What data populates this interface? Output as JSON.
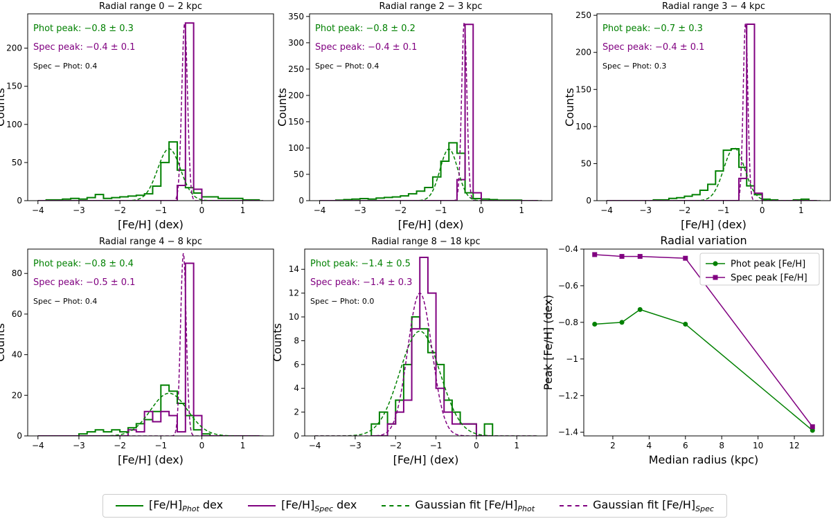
{
  "colors": {
    "phot": "#008000",
    "spec": "#800080",
    "axis": "#000000"
  },
  "legend": {
    "phot_main": "[Fe/H]",
    "phot_sub": "Phot",
    "phot_suffix": " dex",
    "spec_main": "[Fe/H]",
    "spec_sub": "Spec",
    "spec_suffix": " dex",
    "gphot_main": "Gaussian fit [Fe/H]",
    "gphot_sub": "Phot",
    "gspec_main": "Gaussian fit [Fe/H]",
    "gspec_sub": "Spec"
  },
  "chart_data": [
    {
      "type": "histogram",
      "title": "Radial range 0 − 2 kpc",
      "xlabel": "[Fe/H] (dex)",
      "ylabel": "Counts",
      "xlim": [
        -4.25,
        1.75
      ],
      "ylim": [
        0,
        245
      ],
      "xticks": [
        -4,
        -3,
        -2,
        -1,
        0,
        1
      ],
      "yticks": [
        0,
        50,
        100,
        150,
        200
      ],
      "annotations": {
        "phot": "Phot peak: −0.8 ± 0.3",
        "spec": "Spec peak: −0.4 ± 0.1",
        "diff": "Spec −  Phot: 0.4"
      },
      "bin_edges": [
        -4.0,
        -3.8,
        -3.6,
        -3.4,
        -3.2,
        -3.0,
        -2.8,
        -2.6,
        -2.4,
        -2.2,
        -2.0,
        -1.8,
        -1.6,
        -1.4,
        -1.2,
        -1.0,
        -0.8,
        -0.6,
        -0.4,
        -0.2,
        0.0,
        0.2,
        0.4,
        0.6,
        0.8,
        1.0,
        1.2,
        1.4
      ],
      "phot_counts": [
        0,
        1,
        1,
        2,
        3,
        2,
        4,
        8,
        3,
        4,
        5,
        6,
        7,
        9,
        19,
        50,
        77,
        40,
        17,
        10,
        5,
        5,
        3,
        3,
        3,
        1,
        1
      ],
      "spec_counts": [
        0,
        0,
        0,
        0,
        0,
        0,
        0,
        0,
        0,
        0,
        0,
        0,
        0,
        0,
        0,
        0,
        0,
        20,
        233,
        15,
        0,
        0,
        0,
        0,
        0,
        0,
        0
      ],
      "gauss_phot": {
        "amp": 68,
        "mu": -0.8,
        "sigma": 0.28
      },
      "gauss_spec": {
        "amp": 233,
        "mu": -0.42,
        "sigma": 0.07
      }
    },
    {
      "type": "histogram",
      "title": "Radial range 2 − 3 kpc",
      "xlabel": "[Fe/H] (dex)",
      "ylabel": "Counts",
      "xlim": [
        -4.25,
        1.75
      ],
      "ylim": [
        0,
        355
      ],
      "xticks": [
        -4,
        -3,
        -2,
        -1,
        0,
        1
      ],
      "yticks": [
        0,
        50,
        100,
        150,
        200,
        250,
        300,
        350
      ],
      "annotations": {
        "phot": "Phot peak: −0.8 ± 0.2",
        "spec": "Spec peak: −0.4 ± 0.1",
        "diff": "Spec −  Phot: 0.4"
      },
      "bin_edges": [
        -4.0,
        -3.8,
        -3.6,
        -3.4,
        -3.2,
        -3.0,
        -2.8,
        -2.6,
        -2.4,
        -2.2,
        -2.0,
        -1.8,
        -1.6,
        -1.4,
        -1.2,
        -1.0,
        -0.8,
        -0.6,
        -0.4,
        -0.2,
        0.0,
        0.2,
        0.4,
        0.6,
        0.8,
        1.0,
        1.2,
        1.4
      ],
      "phot_counts": [
        0,
        0,
        1,
        2,
        3,
        4,
        3,
        5,
        6,
        7,
        9,
        13,
        18,
        25,
        45,
        75,
        110,
        90,
        15,
        4,
        3,
        2,
        1,
        1,
        1,
        0,
        0
      ],
      "spec_counts": [
        0,
        0,
        0,
        0,
        0,
        0,
        0,
        0,
        0,
        0,
        0,
        0,
        0,
        0,
        0,
        0,
        0,
        40,
        335,
        15,
        0,
        0,
        0,
        0,
        0,
        0,
        0
      ],
      "gauss_phot": {
        "amp": 98,
        "mu": -0.8,
        "sigma": 0.22
      },
      "gauss_spec": {
        "amp": 340,
        "mu": -0.42,
        "sigma": 0.065
      }
    },
    {
      "type": "histogram",
      "title": "Radial range 3 − 4 kpc",
      "xlabel": "[Fe/H] (dex)",
      "ylabel": "Counts",
      "xlim": [
        -4.25,
        1.75
      ],
      "ylim": [
        0,
        252
      ],
      "xticks": [
        -4,
        -3,
        -2,
        -1,
        0,
        1
      ],
      "yticks": [
        0,
        50,
        100,
        150,
        200,
        250
      ],
      "annotations": {
        "phot": "Phot peak: −0.7 ± 0.3",
        "spec": "Spec peak: −0.4 ± 0.1",
        "diff": "Spec −  Phot: 0.3"
      },
      "bin_edges": [
        -4.0,
        -3.8,
        -3.6,
        -3.4,
        -3.2,
        -3.0,
        -2.8,
        -2.6,
        -2.4,
        -2.2,
        -2.0,
        -1.8,
        -1.6,
        -1.4,
        -1.2,
        -1.0,
        -0.8,
        -0.6,
        -0.4,
        -0.2,
        0.0,
        0.2,
        0.4,
        0.6,
        0.8,
        1.0,
        1.2,
        1.4
      ],
      "phot_counts": [
        0,
        0,
        0,
        0,
        0,
        0,
        1,
        1,
        3,
        4,
        6,
        8,
        14,
        22,
        40,
        68,
        70,
        45,
        20,
        8,
        2,
        1,
        0,
        0,
        1,
        2,
        0
      ],
      "spec_counts": [
        0,
        0,
        0,
        0,
        0,
        0,
        0,
        0,
        0,
        0,
        0,
        0,
        0,
        0,
        0,
        0,
        0,
        30,
        238,
        10,
        0,
        0,
        0,
        0,
        0,
        0,
        0
      ],
      "gauss_phot": {
        "amp": 71,
        "mu": -0.72,
        "sigma": 0.27
      },
      "gauss_spec": {
        "amp": 240,
        "mu": -0.43,
        "sigma": 0.06
      }
    },
    {
      "type": "histogram",
      "title": "Radial range 4 − 8 kpc",
      "xlabel": "[Fe/H] (dex)",
      "ylabel": "Counts",
      "xlim": [
        -4.25,
        1.75
      ],
      "ylim": [
        0,
        92
      ],
      "xticks": [
        -4,
        -3,
        -2,
        -1,
        0,
        1
      ],
      "yticks": [
        0,
        20,
        40,
        60,
        80
      ],
      "annotations": {
        "phot": "Phot peak: −0.8 ± 0.4",
        "spec": "Spec peak: −0.5 ± 0.1",
        "diff": "Spec −  Phot: 0.4"
      },
      "bin_edges": [
        -4.0,
        -3.8,
        -3.6,
        -3.4,
        -3.2,
        -3.0,
        -2.8,
        -2.6,
        -2.4,
        -2.2,
        -2.0,
        -1.8,
        -1.6,
        -1.4,
        -1.2,
        -1.0,
        -0.8,
        -0.6,
        -0.4,
        -0.2,
        0.0,
        0.2,
        0.4,
        0.6,
        0.8,
        1.0,
        1.2,
        1.4
      ],
      "phot_counts": [
        0,
        0,
        0,
        0,
        0,
        1,
        2,
        3,
        2,
        3,
        2,
        4,
        6,
        8,
        12,
        25,
        22,
        16,
        10,
        3,
        1,
        0,
        0,
        0,
        0,
        0,
        0
      ],
      "spec_counts": [
        0,
        0,
        0,
        0,
        0,
        0,
        0,
        0,
        0,
        0,
        0,
        3,
        2,
        12,
        7,
        12,
        10,
        2,
        85,
        10,
        0,
        0,
        0,
        0,
        0,
        0,
        0
      ],
      "gauss_phot": {
        "amp": 21,
        "mu": -0.8,
        "sigma": 0.45
      },
      "gauss_spec": {
        "amp": 90,
        "mu": -0.45,
        "sigma": 0.07
      }
    },
    {
      "type": "histogram",
      "title": "Radial range 8 − 18 kpc",
      "xlabel": "[Fe/H] (dex)",
      "ylabel": "Counts",
      "xlim": [
        -4.25,
        1.75
      ],
      "ylim": [
        0,
        15.7
      ],
      "xticks": [
        -4,
        -3,
        -2,
        -1,
        0,
        1
      ],
      "yticks": [
        0,
        2,
        4,
        6,
        8,
        10,
        12,
        14
      ],
      "annotations": {
        "phot": "Phot peak: −1.4 ± 0.5",
        "spec": "Spec peak: −1.4 ± 0.3",
        "diff": "Spec −  Phot: 0.0"
      },
      "bin_edges": [
        -2.6,
        -2.4,
        -2.2,
        -2.0,
        -1.8,
        -1.6,
        -1.4,
        -1.2,
        -1.0,
        -0.8,
        -0.6,
        -0.4,
        -0.2,
        0.0,
        0.2,
        0.4
      ],
      "phot_counts": [
        1,
        2,
        1,
        3,
        6,
        10,
        9,
        7,
        6,
        3,
        2,
        1,
        1,
        0,
        1
      ],
      "spec_counts": [
        0,
        0,
        1,
        2,
        3,
        9,
        15,
        12,
        4,
        2,
        1,
        1,
        1,
        0,
        0
      ],
      "gauss_phot": {
        "amp": 8.8,
        "mu": -1.4,
        "sigma": 0.5
      },
      "gauss_spec": {
        "amp": 12,
        "mu": -1.4,
        "sigma": 0.3
      }
    },
    {
      "type": "line",
      "title": "Radial variation",
      "xlabel": "Median radius  (kpc)",
      "ylabel": "Peak [Fe/H]  (dex)",
      "xlim": [
        0.4,
        13.6
      ],
      "ylim": [
        -1.42,
        -0.4
      ],
      "xticks": [
        2,
        4,
        6,
        8,
        10,
        12
      ],
      "yticks": [
        -1.4,
        -1.2,
        -1.0,
        -0.8,
        -0.6,
        -0.4
      ],
      "legend_position": "top-right",
      "x": [
        1.0,
        2.5,
        3.5,
        6.0,
        13.0
      ],
      "series": [
        {
          "name": "Phot peak [Fe/H]",
          "values": [
            -0.81,
            -0.8,
            -0.73,
            -0.81,
            -1.39
          ]
        },
        {
          "name": "Spec peak [Fe/H]",
          "values": [
            -0.43,
            -0.44,
            -0.44,
            -0.45,
            -1.37
          ]
        }
      ]
    }
  ]
}
